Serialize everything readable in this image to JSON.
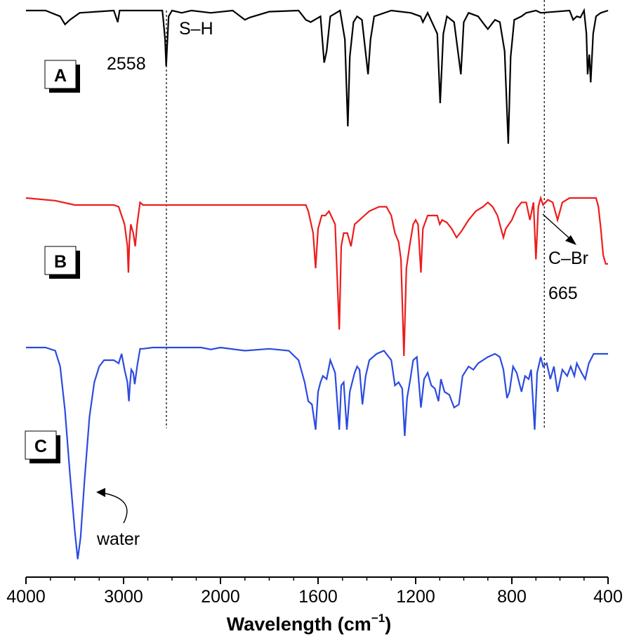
{
  "chart_data": {
    "type": "line",
    "xlabel": "Wavelength (cm",
    "xlabel_sup": "−1",
    "xlabel_close": ")",
    "ylabel": "",
    "x_ticks": [
      "4000",
      "3000",
      "2000",
      "1600",
      "1200",
      "800",
      "400"
    ],
    "x_axis_note": "broken scale: linear 4000–2000 and linear 2000–400 with compressed high-wavenumber region",
    "grid": false,
    "legend": "none",
    "panel_labels": [
      "A",
      "B",
      "C"
    ],
    "series": [
      {
        "label": "A",
        "color": "#000000",
        "points": [
          [
            4000,
            0.0
          ],
          [
            3800,
            0.0
          ],
          [
            3650,
            0.05
          ],
          [
            3600,
            0.12
          ],
          [
            3550,
            0.08
          ],
          [
            3450,
            0.02
          ],
          [
            3100,
            0.0
          ],
          [
            3060,
            0.1
          ],
          [
            3040,
            0.0
          ],
          [
            2700,
            0.0
          ],
          [
            2600,
            0.0
          ],
          [
            2590,
            0.08
          ],
          [
            2572,
            0.25
          ],
          [
            2560,
            0.48
          ],
          [
            2550,
            0.3
          ],
          [
            2535,
            0.05
          ],
          [
            2500,
            0.0
          ],
          [
            2400,
            0.02
          ],
          [
            2300,
            0.0
          ],
          [
            2100,
            0.02
          ],
          [
            1950,
            0.0
          ],
          [
            1900,
            0.08
          ],
          [
            1880,
            0.06
          ],
          [
            1800,
            0.01
          ],
          [
            1680,
            0.0
          ],
          [
            1650,
            0.08
          ],
          [
            1630,
            0.1
          ],
          [
            1590,
            0.05
          ],
          [
            1575,
            0.45
          ],
          [
            1565,
            0.35
          ],
          [
            1550,
            0.05
          ],
          [
            1510,
            0.0
          ],
          [
            1490,
            0.25
          ],
          [
            1478,
            1.0
          ],
          [
            1470,
            0.4
          ],
          [
            1455,
            0.1
          ],
          [
            1440,
            0.05
          ],
          [
            1420,
            0.08
          ],
          [
            1395,
            0.55
          ],
          [
            1385,
            0.25
          ],
          [
            1370,
            0.05
          ],
          [
            1300,
            0.0
          ],
          [
            1220,
            0.02
          ],
          [
            1180,
            0.05
          ],
          [
            1170,
            0.1
          ],
          [
            1150,
            0.02
          ],
          [
            1110,
            0.2
          ],
          [
            1098,
            0.8
          ],
          [
            1085,
            0.2
          ],
          [
            1070,
            0.05
          ],
          [
            1040,
            0.1
          ],
          [
            1012,
            0.55
          ],
          [
            1000,
            0.1
          ],
          [
            980,
            0.02
          ],
          [
            940,
            0.05
          ],
          [
            915,
            0.12
          ],
          [
            900,
            0.16
          ],
          [
            870,
            0.08
          ],
          [
            850,
            0.1
          ],
          [
            830,
            0.35
          ],
          [
            815,
            1.15
          ],
          [
            805,
            0.4
          ],
          [
            790,
            0.08
          ],
          [
            760,
            0.05
          ],
          [
            740,
            0.02
          ],
          [
            700,
            0.0
          ],
          [
            680,
            0.02
          ],
          [
            560,
            0.0
          ],
          [
            545,
            0.08
          ],
          [
            530,
            0.05
          ],
          [
            515,
            0.06
          ],
          [
            500,
            0.0
          ],
          [
            490,
            0.2
          ],
          [
            485,
            0.55
          ],
          [
            478,
            0.38
          ],
          [
            472,
            0.62
          ],
          [
            462,
            0.2
          ],
          [
            450,
            0.05
          ],
          [
            430,
            0.02
          ],
          [
            400,
            0.0
          ]
        ]
      },
      {
        "label": "B",
        "color": "#ee1c1c",
        "points": [
          [
            4000,
            0.0
          ],
          [
            3700,
            0.03
          ],
          [
            3500,
            0.08
          ],
          [
            3300,
            0.08
          ],
          [
            3100,
            0.08
          ],
          [
            3050,
            0.1
          ],
          [
            3020,
            0.2
          ],
          [
            2990,
            0.3
          ],
          [
            2960,
            0.55
          ],
          [
            2950,
            0.85
          ],
          [
            2940,
            0.5
          ],
          [
            2925,
            0.3
          ],
          [
            2900,
            0.4
          ],
          [
            2880,
            0.55
          ],
          [
            2860,
            0.3
          ],
          [
            2830,
            0.05
          ],
          [
            2800,
            0.08
          ],
          [
            2600,
            0.08
          ],
          [
            2200,
            0.08
          ],
          [
            1900,
            0.08
          ],
          [
            1700,
            0.08
          ],
          [
            1650,
            0.08
          ],
          [
            1640,
            0.15
          ],
          [
            1620,
            0.4
          ],
          [
            1610,
            0.8
          ],
          [
            1600,
            0.35
          ],
          [
            1585,
            0.2
          ],
          [
            1570,
            0.2
          ],
          [
            1555,
            0.15
          ],
          [
            1530,
            0.3
          ],
          [
            1513,
            1.5
          ],
          [
            1505,
            0.55
          ],
          [
            1495,
            0.4
          ],
          [
            1480,
            0.4
          ],
          [
            1465,
            0.55
          ],
          [
            1450,
            0.3
          ],
          [
            1430,
            0.25
          ],
          [
            1410,
            0.2
          ],
          [
            1390,
            0.15
          ],
          [
            1350,
            0.1
          ],
          [
            1320,
            0.1
          ],
          [
            1300,
            0.2
          ],
          [
            1285,
            0.4
          ],
          [
            1270,
            0.5
          ],
          [
            1260,
            0.7
          ],
          [
            1248,
            1.8
          ],
          [
            1238,
            0.8
          ],
          [
            1225,
            0.55
          ],
          [
            1210,
            0.3
          ],
          [
            1200,
            0.25
          ],
          [
            1190,
            0.3
          ],
          [
            1178,
            0.85
          ],
          [
            1170,
            0.35
          ],
          [
            1150,
            0.2
          ],
          [
            1110,
            0.2
          ],
          [
            1100,
            0.3
          ],
          [
            1090,
            0.25
          ],
          [
            1070,
            0.28
          ],
          [
            1050,
            0.35
          ],
          [
            1030,
            0.45
          ],
          [
            1010,
            0.38
          ],
          [
            980,
            0.25
          ],
          [
            950,
            0.15
          ],
          [
            920,
            0.1
          ],
          [
            900,
            0.05
          ],
          [
            880,
            0.1
          ],
          [
            860,
            0.2
          ],
          [
            835,
            0.45
          ],
          [
            825,
            0.35
          ],
          [
            800,
            0.25
          ],
          [
            780,
            0.12
          ],
          [
            760,
            0.05
          ],
          [
            740,
            0.05
          ],
          [
            725,
            0.25
          ],
          [
            710,
            0.05
          ],
          [
            700,
            0.7
          ],
          [
            690,
            0.1
          ],
          [
            680,
            0.0
          ],
          [
            670,
            0.08
          ],
          [
            650,
            0.02
          ],
          [
            630,
            0.05
          ],
          [
            610,
            0.25
          ],
          [
            590,
            0.05
          ],
          [
            560,
            0.0
          ],
          [
            500,
            0.0
          ],
          [
            450,
            0.0
          ],
          [
            440,
            0.1
          ],
          [
            430,
            0.35
          ],
          [
            420,
            0.65
          ],
          [
            410,
            0.75
          ],
          [
            400,
            0.75
          ]
        ]
      },
      {
        "label": "C",
        "color": "#2b4be0",
        "points": [
          [
            4000,
            0.0
          ],
          [
            3800,
            0.0
          ],
          [
            3700,
            0.05
          ],
          [
            3650,
            0.3
          ],
          [
            3600,
            1.0
          ],
          [
            3550,
            2.0
          ],
          [
            3500,
            2.9
          ],
          [
            3470,
            3.35
          ],
          [
            3440,
            3.0
          ],
          [
            3400,
            2.1
          ],
          [
            3350,
            1.1
          ],
          [
            3300,
            0.55
          ],
          [
            3250,
            0.3
          ],
          [
            3200,
            0.2
          ],
          [
            3100,
            0.2
          ],
          [
            3050,
            0.25
          ],
          [
            3020,
            0.1
          ],
          [
            2990,
            0.35
          ],
          [
            2960,
            0.55
          ],
          [
            2945,
            0.85
          ],
          [
            2935,
            0.6
          ],
          [
            2920,
            0.35
          ],
          [
            2900,
            0.4
          ],
          [
            2885,
            0.58
          ],
          [
            2860,
            0.3
          ],
          [
            2830,
            0.02
          ],
          [
            2800,
            0.02
          ],
          [
            2700,
            0.0
          ],
          [
            2500,
            0.0
          ],
          [
            2200,
            0.0
          ],
          [
            2100,
            0.03
          ],
          [
            2000,
            0.0
          ],
          [
            1900,
            0.05
          ],
          [
            1800,
            0.02
          ],
          [
            1720,
            0.05
          ],
          [
            1680,
            0.2
          ],
          [
            1655,
            0.55
          ],
          [
            1640,
            0.85
          ],
          [
            1625,
            0.9
          ],
          [
            1610,
            1.3
          ],
          [
            1600,
            0.7
          ],
          [
            1590,
            0.55
          ],
          [
            1580,
            0.45
          ],
          [
            1565,
            0.5
          ],
          [
            1550,
            0.2
          ],
          [
            1530,
            0.4
          ],
          [
            1513,
            1.3
          ],
          [
            1505,
            0.6
          ],
          [
            1495,
            0.55
          ],
          [
            1482,
            1.3
          ],
          [
            1470,
            0.7
          ],
          [
            1460,
            0.55
          ],
          [
            1450,
            0.4
          ],
          [
            1440,
            0.3
          ],
          [
            1430,
            0.35
          ],
          [
            1418,
            0.9
          ],
          [
            1405,
            0.45
          ],
          [
            1390,
            0.2
          ],
          [
            1360,
            0.1
          ],
          [
            1330,
            0.05
          ],
          [
            1300,
            0.2
          ],
          [
            1285,
            0.6
          ],
          [
            1270,
            0.55
          ],
          [
            1255,
            0.65
          ],
          [
            1245,
            1.4
          ],
          [
            1235,
            0.8
          ],
          [
            1222,
            0.5
          ],
          [
            1210,
            0.2
          ],
          [
            1195,
            0.15
          ],
          [
            1178,
            0.95
          ],
          [
            1165,
            0.5
          ],
          [
            1150,
            0.4
          ],
          [
            1135,
            0.6
          ],
          [
            1120,
            0.65
          ],
          [
            1105,
            0.85
          ],
          [
            1095,
            0.5
          ],
          [
            1080,
            0.7
          ],
          [
            1060,
            0.75
          ],
          [
            1040,
            0.95
          ],
          [
            1020,
            0.9
          ],
          [
            1005,
            0.45
          ],
          [
            980,
            0.3
          ],
          [
            960,
            0.35
          ],
          [
            940,
            0.25
          ],
          [
            900,
            0.15
          ],
          [
            870,
            0.1
          ],
          [
            850,
            0.15
          ],
          [
            835,
            0.35
          ],
          [
            820,
            0.8
          ],
          [
            810,
            0.7
          ],
          [
            795,
            0.3
          ],
          [
            780,
            0.4
          ],
          [
            760,
            0.7
          ],
          [
            745,
            0.45
          ],
          [
            730,
            0.5
          ],
          [
            720,
            0.35
          ],
          [
            705,
            1.3
          ],
          [
            695,
            0.4
          ],
          [
            680,
            0.15
          ],
          [
            670,
            0.3
          ],
          [
            655,
            0.25
          ],
          [
            640,
            0.5
          ],
          [
            625,
            0.3
          ],
          [
            610,
            0.7
          ],
          [
            590,
            0.35
          ],
          [
            570,
            0.45
          ],
          [
            555,
            0.3
          ],
          [
            540,
            0.45
          ],
          [
            530,
            0.25
          ],
          [
            510,
            0.4
          ],
          [
            495,
            0.5
          ],
          [
            480,
            0.25
          ],
          [
            460,
            0.1
          ],
          [
            440,
            0.1
          ],
          [
            420,
            0.1
          ],
          [
            400,
            0.1
          ]
        ]
      }
    ],
    "reference_lines": [
      2558,
      665
    ],
    "annotations": [
      {
        "text": "2558",
        "x": 2558
      },
      {
        "text": "S–H",
        "x": 2558
      },
      {
        "text": "C–Br",
        "x": 665
      },
      {
        "text": "665",
        "x": 665
      },
      {
        "text": "water",
        "x": 3470
      }
    ]
  },
  "colors": {
    "A": "#000000",
    "B": "#ee1c1c",
    "C": "#2b4be0"
  }
}
